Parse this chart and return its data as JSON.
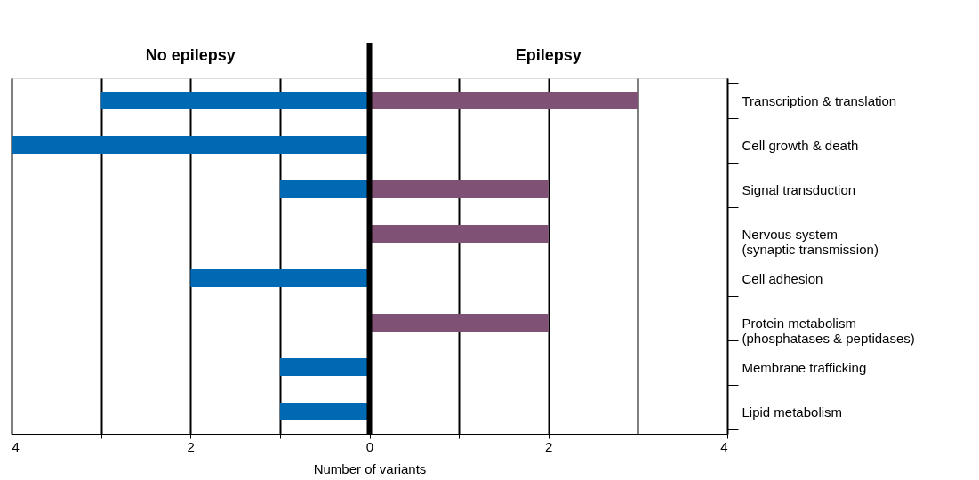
{
  "chart_data": {
    "type": "bar",
    "orientation": "horizontal",
    "xlabel": "Number of variants",
    "categories": [
      "Transcription & translation",
      "Cell growth & death",
      "Signal transduction",
      "Nervous system\n  (synaptic transmission)",
      "Cell adhesion",
      "Protein metabolism\n  (phosphatases & peptidases)",
      "Membrane trafficking",
      "Lipid metabolism"
    ],
    "series": [
      {
        "name": "No epilepsy",
        "color": "#0069b4",
        "values": [
          -3,
          -4,
          -1,
          null,
          -2,
          null,
          -1,
          -1
        ]
      },
      {
        "name": "Epilepsy",
        "color": "#7f5174",
        "values": [
          3,
          null,
          2,
          2,
          null,
          2,
          null,
          null
        ]
      }
    ],
    "xlim": [
      -4,
      4
    ],
    "xticks": [
      {
        "value": -4,
        "label": "4"
      },
      {
        "value": -3,
        "label": null
      },
      {
        "value": -2,
        "label": "2"
      },
      {
        "value": -1,
        "label": null
      },
      0,
      {
        "value": 1,
        "label": null
      },
      2,
      {
        "value": 3,
        "label": null
      },
      4
    ],
    "grid": "x",
    "ref_lines": [
      {
        "axis": "x",
        "value": 0,
        "color": "#000000"
      }
    ]
  }
}
